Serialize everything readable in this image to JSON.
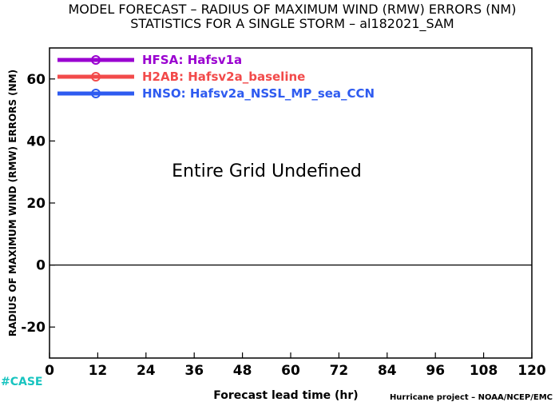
{
  "header": {
    "title_line1": "MODEL FORECAST – RADIUS OF MAXIMUM WIND (RMW) ERRORS (NM)",
    "title_line2": "STATISTICS FOR A SINGLE STORM – al182021_SAM"
  },
  "footer": {
    "case_tag": "#CASE",
    "credit": "Hurricane project – NOAA/NCEP/EMC"
  },
  "colors": {
    "hfsa": "#9a00d0",
    "h2ab": "#f24a4a",
    "hnso": "#2e5bf0",
    "case": "#18c4c0",
    "axis": "#000000"
  },
  "chart_data": {
    "type": "line",
    "title": "MODEL FORECAST – RADIUS OF MAXIMUM WIND (RMW) ERRORS (NM)",
    "subtitle": "STATISTICS FOR A SINGLE STORM – al182021_SAM",
    "xlabel": "Forecast lead time (hr)",
    "ylabel": "RADIUS OF MAXIMUM WIND (RMW) ERRORS (NM)",
    "xlim": [
      0,
      120
    ],
    "ylim": [
      -30,
      70
    ],
    "xticks": [
      0,
      12,
      24,
      36,
      48,
      60,
      72,
      84,
      96,
      108,
      120
    ],
    "yticks": [
      -20,
      0,
      20,
      40,
      60
    ],
    "ytick_labels": [
      "-20",
      "0",
      "20",
      "40",
      "60"
    ],
    "zero_line": 0,
    "grid": false,
    "legend_position": "top-left",
    "annotation": "Entire Grid Undefined",
    "series": [
      {
        "name": "HFSA: Hafsv1a",
        "color": "#9a00d0",
        "marker": "circle",
        "x": [],
        "y": []
      },
      {
        "name": "H2AB: Hafsv2a_baseline",
        "color": "#f24a4a",
        "marker": "circle",
        "x": [],
        "y": []
      },
      {
        "name": "HNSO: Hafsv2a_NSSL_MP_sea_CCN",
        "color": "#2e5bf0",
        "marker": "circle",
        "x": [],
        "y": []
      }
    ]
  }
}
